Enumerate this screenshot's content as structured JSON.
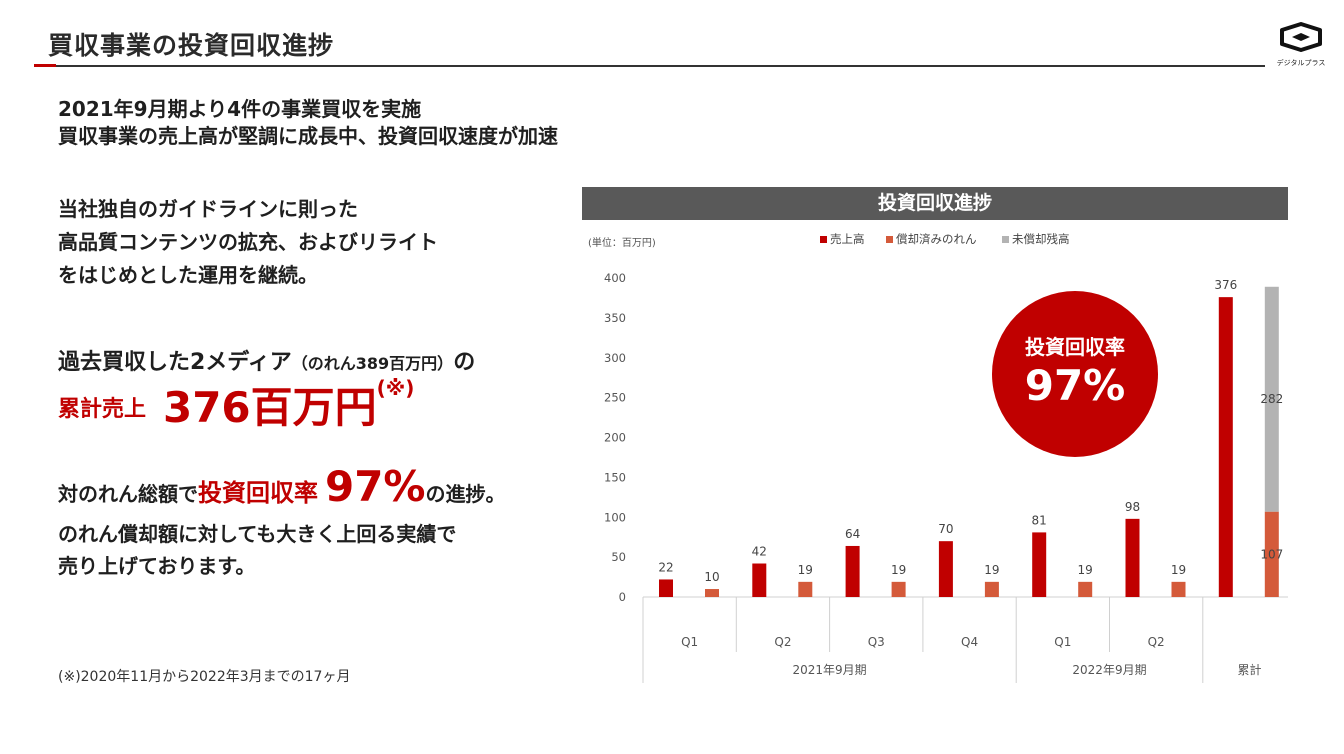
{
  "header": {
    "title": "買収事業の投資回収進捗",
    "logo_caption": "デジタルプラス"
  },
  "summary": {
    "line1": "2021年9月期より4件の事業買収を実施",
    "line2": "買収事業の売上高が堅調に成長中、投資回収速度が加速"
  },
  "guideline": {
    "line1": "当社独自のガイドラインに則った",
    "line2": "高品質コンテンツの拡充、およびリライト",
    "line3": "をはじめとした運用を継続。"
  },
  "media": {
    "prefix": "過去買収した2メディア",
    "paren": "（のれん389百万円）",
    "suffix": "の",
    "cumulative_label": "累計売上",
    "cumulative_value": "376百万円",
    "note_mark": "(※)"
  },
  "progress": {
    "prefix": "対のれん総額で",
    "rate_label": "投資回収率",
    "rate_value": "97%",
    "suffix": "の進捗。",
    "line2": "のれん償却額に対しても大きく上回る実績で",
    "line3": "売り上げております。"
  },
  "footnote": "(※)2020年11月から2022年3月までの17ヶ月",
  "badge": {
    "label": "投資回収率",
    "value": "97%"
  },
  "colors": {
    "revenue": "#c00000",
    "amortized": "#d45a3a",
    "remaining": "#b3b3b3",
    "header": "#595959"
  },
  "chart_data": {
    "type": "bar",
    "title": "投資回収進捗",
    "unit_label": "(単位：百万円)",
    "ylim": [
      0,
      400
    ],
    "yticks": [
      0,
      50,
      100,
      150,
      200,
      250,
      300,
      350,
      400
    ],
    "legend": [
      "売上高",
      "償却済みのれん",
      "未償却残高"
    ],
    "legend_position": "top",
    "categories": [
      "Q1",
      "Q2",
      "Q3",
      "Q4",
      "Q1",
      "Q2",
      "累計"
    ],
    "groups": [
      {
        "label": "2021年9月期",
        "span": 4
      },
      {
        "label": "2022年9月期",
        "span": 2
      },
      {
        "label": "累計",
        "span": 1
      }
    ],
    "series": [
      {
        "name": "売上高",
        "values": [
          22,
          42,
          64,
          70,
          81,
          98,
          376
        ]
      },
      {
        "name": "償却済みのれん",
        "values": [
          10,
          19,
          19,
          19,
          19,
          19,
          107
        ]
      },
      {
        "name": "未償却残高",
        "values": [
          null,
          null,
          null,
          null,
          null,
          null,
          282
        ]
      }
    ],
    "label_strings": {
      "revenue": [
        "22",
        "42",
        "64",
        "70",
        "81",
        "98",
        "376"
      ],
      "amortized": [
        "10",
        "19",
        "19",
        "19",
        "19",
        "19",
        "107"
      ],
      "remaining": "282"
    }
  }
}
